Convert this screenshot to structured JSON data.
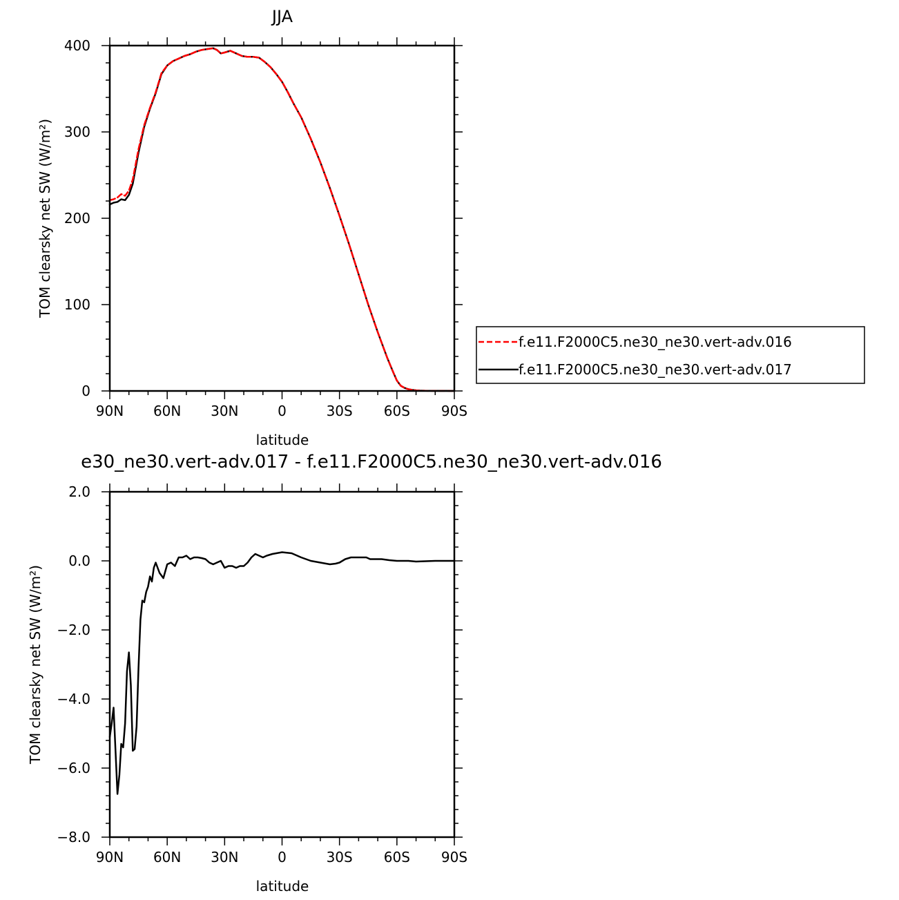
{
  "chart_data": [
    {
      "type": "line",
      "title": "JJA",
      "xlabel": "latitude",
      "ylabel": "TOM clearsky net SW (W/m²)",
      "x_tick_labels": [
        "90N",
        "60N",
        "30N",
        "0",
        "30S",
        "60S",
        "90S"
      ],
      "x_tick_values": [
        90,
        60,
        30,
        0,
        -30,
        -60,
        -90
      ],
      "xlim": [
        90,
        -90
      ],
      "y_tick_labels": [
        "0",
        "100",
        "200",
        "300",
        "400"
      ],
      "y_tick_values": [
        0,
        100,
        200,
        300,
        400
      ],
      "ylim": [
        0,
        400
      ],
      "legend": {
        "position": "right"
      },
      "series": [
        {
          "name": "f.e11.F2000C5.ne30_ne30.vert-adv.016",
          "color": "#ff0000",
          "dash": "dashed",
          "x": [
            90,
            88,
            86,
            84,
            82,
            80,
            78,
            75,
            72,
            69,
            66,
            63,
            60,
            57,
            54,
            51,
            48,
            45,
            42,
            39,
            36,
            34,
            32,
            30,
            27,
            24,
            21,
            18,
            15,
            12,
            9,
            6,
            3,
            0,
            -3,
            -6,
            -10,
            -15,
            -20,
            -25,
            -30,
            -35,
            -40,
            -45,
            -50,
            -55,
            -58,
            -60,
            -62,
            -64,
            -66,
            -68,
            -70,
            -72,
            -75,
            -80,
            -85,
            -90
          ],
          "y": [
            221,
            222,
            224,
            228,
            226,
            232,
            245,
            280,
            308,
            328,
            346,
            368,
            377,
            382,
            385,
            388,
            390,
            393,
            395,
            396,
            397,
            395,
            391,
            392,
            394,
            391,
            388,
            387,
            387,
            386,
            381,
            375,
            367,
            358,
            346,
            333,
            317,
            292,
            265,
            235,
            203,
            170,
            135,
            100,
            68,
            38,
            22,
            12,
            6,
            3.5,
            2,
            1.2,
            0.7,
            0.4,
            0.2,
            0.1,
            0.05,
            0
          ]
        },
        {
          "name": "f.e11.F2000C5.ne30_ne30.vert-adv.017",
          "color": "#000000",
          "dash": "solid",
          "x": [
            90,
            88,
            86,
            84,
            82,
            80,
            78,
            75,
            72,
            69,
            66,
            63,
            60,
            57,
            54,
            51,
            48,
            45,
            42,
            39,
            36,
            34,
            32,
            30,
            27,
            24,
            21,
            18,
            15,
            12,
            9,
            6,
            3,
            0,
            -3,
            -6,
            -10,
            -15,
            -20,
            -25,
            -30,
            -35,
            -40,
            -45,
            -50,
            -55,
            -58,
            -60,
            -62,
            -64,
            -66,
            -68,
            -70,
            -72,
            -75,
            -80,
            -85,
            -90
          ],
          "y": [
            216,
            218,
            219,
            222,
            221,
            227,
            240,
            276,
            306,
            327,
            345,
            367,
            377,
            382,
            385,
            388,
            390,
            393,
            395,
            396,
            397,
            395,
            391,
            392,
            394,
            391,
            388,
            387,
            387,
            386,
            381,
            375,
            367,
            358,
            346,
            333,
            317,
            292,
            265,
            235,
            203,
            170,
            135,
            100,
            68,
            38,
            22,
            12,
            6,
            3.5,
            2,
            1.2,
            0.7,
            0.4,
            0.2,
            0.1,
            0.05,
            0
          ]
        }
      ]
    },
    {
      "type": "line",
      "title": "e30_ne30.vert-adv.017 - f.e11.F2000C5.ne30_ne30.vert-adv.016",
      "xlabel": "latitude",
      "ylabel": "TOM clearsky net SW (W/m²)",
      "x_tick_labels": [
        "90N",
        "60N",
        "30N",
        "0",
        "30S",
        "60S",
        "90S"
      ],
      "x_tick_values": [
        90,
        60,
        30,
        0,
        -30,
        -60,
        -90
      ],
      "xlim": [
        90,
        -90
      ],
      "y_tick_labels": [
        "−8.0",
        "−6.0",
        "−4.0",
        "−2.0",
        "0.0",
        "2.0"
      ],
      "y_tick_values": [
        -8,
        -6,
        -4,
        -2,
        0,
        2
      ],
      "ylim": [
        -8,
        2
      ],
      "series": [
        {
          "color": "#000000",
          "dash": "solid",
          "x": [
            90,
            89,
            88,
            87,
            86,
            85,
            84,
            83,
            82,
            81,
            80,
            79,
            78,
            77,
            76,
            75,
            74,
            73,
            72,
            71,
            70,
            69,
            68,
            67,
            66,
            64,
            62,
            60,
            58,
            56,
            54,
            52,
            50,
            48,
            46,
            44,
            42,
            40,
            38,
            36,
            34,
            32,
            30,
            28,
            26,
            24,
            22,
            20,
            18,
            16,
            14,
            12,
            10,
            8,
            5,
            0,
            -5,
            -10,
            -15,
            -20,
            -25,
            -28,
            -30,
            -33,
            -36,
            -40,
            -44,
            -46,
            -48,
            -52,
            -56,
            -60,
            -66,
            -70,
            -80,
            -90
          ],
          "y": [
            -5.1,
            -4.7,
            -4.25,
            -5.5,
            -6.75,
            -6.2,
            -5.3,
            -5.4,
            -4.7,
            -3.2,
            -2.65,
            -3.6,
            -5.5,
            -5.45,
            -4.8,
            -3.1,
            -1.7,
            -1.15,
            -1.2,
            -0.9,
            -0.75,
            -0.45,
            -0.6,
            -0.2,
            -0.05,
            -0.35,
            -0.5,
            -0.1,
            -0.05,
            -0.15,
            0.1,
            0.1,
            0.15,
            0.05,
            0.1,
            0.1,
            0.08,
            0.05,
            -0.05,
            -0.1,
            -0.05,
            0.0,
            -0.2,
            -0.15,
            -0.15,
            -0.2,
            -0.15,
            -0.15,
            -0.05,
            0.1,
            0.2,
            0.15,
            0.1,
            0.15,
            0.2,
            0.25,
            0.22,
            0.1,
            0.0,
            -0.05,
            -0.1,
            -0.08,
            -0.05,
            0.05,
            0.1,
            0.1,
            0.1,
            0.05,
            0.05,
            0.05,
            0.02,
            0.0,
            0.0,
            -0.02,
            0.0,
            0.0
          ]
        }
      ]
    }
  ]
}
